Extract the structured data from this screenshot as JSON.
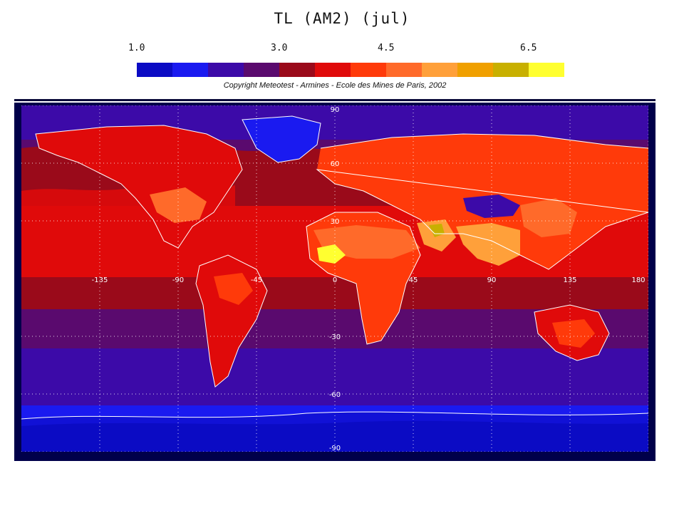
{
  "header": {
    "title": "TL  (AM2)   (jul)",
    "copyright": "Copyright Meteotest - Armines - Ecole des Mines de Paris, 2002"
  },
  "legend": {
    "labels": [
      {
        "text": "1.0",
        "value": 1.0
      },
      {
        "text": "3.0",
        "value": 3.0
      },
      {
        "text": "4.5",
        "value": 4.5
      },
      {
        "text": "6.5",
        "value": 6.5
      }
    ],
    "range": [
      1.0,
      7.0
    ],
    "colors": [
      "#0b0bc4",
      "#1a1af0",
      "#3c0aa8",
      "#5a0a6e",
      "#9a0a1a",
      "#e00a0a",
      "#ff3a0a",
      "#ff6a2a",
      "#ffa03a",
      "#f0a000",
      "#c8b000",
      "#ffff30"
    ]
  },
  "map": {
    "projection": "equirectangular",
    "lon_range": [
      -180,
      180
    ],
    "lat_range": [
      -90,
      90
    ],
    "lon_ticks": [
      {
        "text": "-135",
        "value": -135
      },
      {
        "text": "-90",
        "value": -90
      },
      {
        "text": "-45",
        "value": -45
      },
      {
        "text": "0",
        "value": 0
      },
      {
        "text": "45",
        "value": 45
      },
      {
        "text": "90",
        "value": 90
      },
      {
        "text": "135",
        "value": 135
      },
      {
        "text": "180",
        "value": 180
      }
    ],
    "lat_ticks": [
      {
        "text": "90",
        "value": 90
      },
      {
        "text": "60",
        "value": 60
      },
      {
        "text": "30",
        "value": 30
      },
      {
        "text": "-30",
        "value": -30
      },
      {
        "text": "-60",
        "value": -60
      },
      {
        "text": "-90",
        "value": -90
      }
    ],
    "grid": true,
    "background_colors": {
      "arctic": "#3c0aa8",
      "high_north": "#5a0a6e",
      "north_mid": "#9a0a1a",
      "tropics": "#e00a0a",
      "south_tropics": "#9a0a1a",
      "south_mid": "#5a0a6e",
      "southern_ocean": "#3c0aa8",
      "antarctic": "#1a1af0",
      "antarctica_interior": "#0b0bc4"
    }
  }
}
